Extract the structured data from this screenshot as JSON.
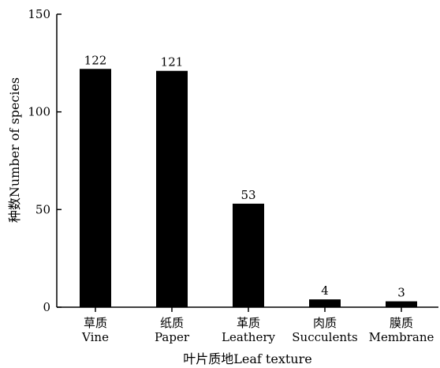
{
  "chart_data": {
    "type": "bar",
    "categories": [
      {
        "zh": "草质",
        "en": "Vine"
      },
      {
        "zh": "纸质",
        "en": "Paper"
      },
      {
        "zh": "革质",
        "en": "Leathery"
      },
      {
        "zh": "肉质",
        "en": "Succulents"
      },
      {
        "zh": "膜质",
        "en": "Membrane"
      }
    ],
    "values": [
      122,
      121,
      53,
      4,
      3
    ],
    "data_labels": [
      "122",
      "121",
      "53",
      "4",
      "3"
    ],
    "xlabel": "叶片质地Leaf texture",
    "ylabel": "种数Number of species",
    "ylim": [
      0,
      150
    ],
    "yticks": [
      0,
      50,
      100,
      150
    ],
    "grid": false,
    "bar_color": "#000000"
  }
}
